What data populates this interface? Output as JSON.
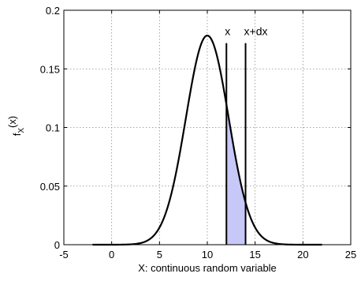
{
  "chart_data": {
    "type": "line",
    "title": "",
    "xlabel": "X: continuous random variable",
    "ylabel_main": "f",
    "ylabel_sub": "X",
    "ylabel_arg": "(x)",
    "xlim": [
      -5,
      25
    ],
    "ylim": [
      0,
      0.2
    ],
    "xticks": [
      -5,
      0,
      5,
      10,
      15,
      20,
      25
    ],
    "xtick_labels": [
      "-5",
      "0",
      "5",
      "10",
      "15",
      "20",
      "25"
    ],
    "yticks": [
      0,
      0.05,
      0.1,
      0.15,
      0.2
    ],
    "ytick_labels": [
      "0",
      "0.05",
      "0.1",
      "0.15",
      "0.2"
    ],
    "grid": true,
    "curve": {
      "distribution": "normal",
      "mean": 10,
      "std": 2.236,
      "x_range": [
        -2,
        22
      ],
      "color": "#000000"
    },
    "shaded_interval": {
      "from": 12,
      "to": 14,
      "color": "#c8c8f8"
    },
    "vertical_markers": [
      {
        "x": 12,
        "top": 0.172,
        "label": "x"
      },
      {
        "x": 14,
        "top": 0.172,
        "label": "x+dx"
      }
    ]
  }
}
